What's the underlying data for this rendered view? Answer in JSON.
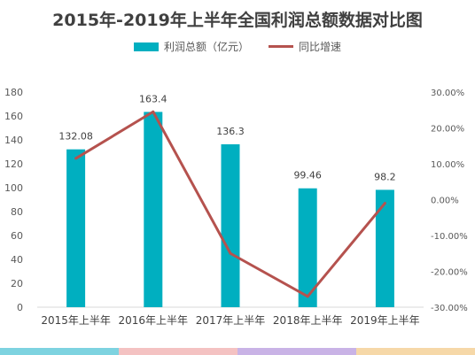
{
  "chart_data": {
    "type": "bar",
    "title": "2015年-2019年上半年全国利润总额数据对比图",
    "categories": [
      "2015年上半年",
      "2016年上半年",
      "2017年上半年",
      "2018年上半年",
      "2019年上半年"
    ],
    "series": [
      {
        "name": "利润总额（亿元）",
        "type": "bar",
        "axis": "left",
        "values": [
          132.08,
          163.4,
          136.3,
          99.46,
          98.2
        ],
        "labels": [
          "132.08",
          "163.4",
          "136.3",
          "99.46",
          "98.2"
        ]
      },
      {
        "name": "同比增速",
        "type": "line",
        "axis": "right",
        "values": [
          11.5,
          24.5,
          -15.0,
          -27.0,
          -1.0
        ]
      }
    ],
    "ylim_left": [
      0,
      180
    ],
    "yticks_left": [
      "0",
      "20",
      "40",
      "60",
      "80",
      "100",
      "120",
      "140",
      "160",
      "180"
    ],
    "ylim_right": [
      -30,
      30
    ],
    "yticks_right": [
      "-30.00%",
      "-20.00%",
      "-10.00%",
      "0.00%",
      "10.00%",
      "20.00%",
      "30.00%"
    ],
    "grid": false,
    "legend_position": "top-center",
    "colors": {
      "bar": "#00AFC0",
      "line": "#B5524E"
    }
  },
  "decor": {
    "stripe_colors": [
      "#7ED3E0",
      "#F4C2C2",
      "#C9B3E6",
      "#F6D8A8"
    ]
  }
}
